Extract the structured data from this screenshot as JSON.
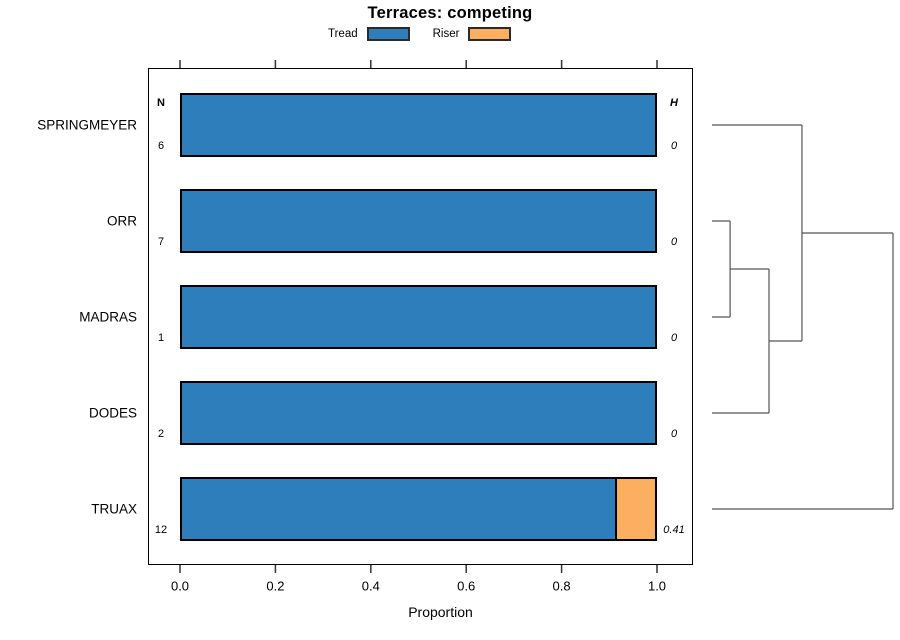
{
  "chart_data": {
    "type": "bar",
    "orientation": "horizontal",
    "stacked": true,
    "title": "Terraces: competing",
    "xlabel": "Proportion",
    "xlim": [
      0,
      1
    ],
    "xtick_labels": [
      "0.0",
      "0.2",
      "0.4",
      "0.6",
      "0.8",
      "1.0"
    ],
    "grid": false,
    "legend_position": "top",
    "categories": [
      "SPRINGMEYER",
      "ORR",
      "MADRAS",
      "DODES",
      "TRUAX"
    ],
    "series": [
      {
        "name": "Tread",
        "color": "#2e7ebc",
        "values": [
          1.0,
          1.0,
          1.0,
          1.0,
          0.917
        ]
      },
      {
        "name": "Riser",
        "color": "#fcae61",
        "values": [
          0,
          0,
          0,
          0,
          0.083
        ]
      }
    ],
    "annotations": {
      "n_header": "N",
      "h_header": "H",
      "n_values": [
        "6",
        "7",
        "1",
        "2",
        "12"
      ],
      "h_values": [
        "0",
        "0",
        "0",
        "0",
        "0.41"
      ]
    },
    "dendrogram": {
      "side": "right",
      "tree": {
        "height": 1.0,
        "children": [
          {
            "height": 0.497,
            "children": [
              {
                "leaf": "SPRINGMEYER"
              },
              {
                "height": 0.315,
                "children": [
                  {
                    "height": 0.1,
                    "children": [
                      {
                        "leaf": "ORR"
                      },
                      {
                        "leaf": "MADRAS"
                      }
                    ]
                  },
                  {
                    "leaf": "DODES"
                  }
                ]
              }
            ]
          },
          {
            "leaf": "TRUAX"
          }
        ]
      }
    }
  }
}
